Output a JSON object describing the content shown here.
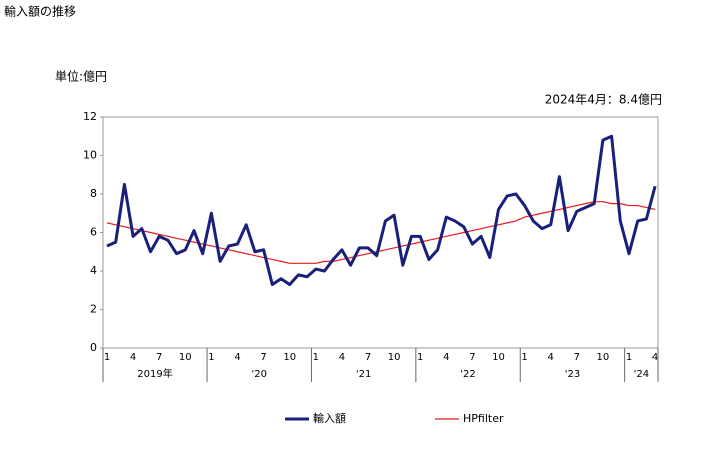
{
  "chart_data": {
    "type": "line",
    "title": "輸入額の推移",
    "unit_label": "単位:億円",
    "annotation": "2024年4月：8.4億円",
    "categories": [
      "1",
      null,
      null,
      "4",
      null,
      null,
      "7",
      null,
      null,
      "10",
      null,
      null,
      "1",
      null,
      null,
      "4",
      null,
      null,
      "7",
      null,
      null,
      "10",
      null,
      null,
      "1",
      null,
      null,
      "4",
      null,
      null,
      "7",
      null,
      null,
      "10",
      null,
      null,
      "1",
      null,
      null,
      "4",
      null,
      null,
      "7",
      null,
      null,
      "10",
      null,
      null,
      "1",
      null,
      null,
      "4",
      null,
      null,
      "7",
      null,
      null,
      "10",
      null,
      null,
      "1",
      null,
      null,
      "4"
    ],
    "year_labels": [
      "2019年",
      "'20",
      "'21",
      "'22",
      "'23",
      "'24"
    ],
    "series": [
      {
        "name": "輸入額",
        "color": "#1a1f7a",
        "values": [
          5.3,
          5.5,
          8.5,
          5.8,
          6.2,
          5.0,
          5.8,
          5.6,
          4.9,
          5.1,
          6.1,
          4.9,
          7.0,
          4.5,
          5.3,
          5.4,
          6.4,
          5.0,
          5.1,
          3.3,
          3.6,
          3.3,
          3.8,
          3.7,
          4.1,
          4.0,
          4.6,
          5.1,
          4.3,
          5.2,
          5.2,
          4.8,
          6.6,
          6.9,
          4.3,
          5.8,
          5.8,
          4.6,
          5.1,
          6.8,
          6.6,
          6.3,
          5.4,
          5.8,
          4.7,
          7.2,
          7.9,
          8.0,
          7.4,
          6.6,
          6.2,
          6.4,
          8.9,
          6.1,
          7.1,
          7.3,
          7.5,
          10.8,
          11.0,
          6.6,
          4.9,
          6.6,
          6.7,
          8.4
        ]
      },
      {
        "name": "HPfilter",
        "color": "#e8191e",
        "values": [
          6.5,
          6.4,
          6.3,
          6.2,
          6.1,
          6.0,
          5.9,
          5.8,
          5.7,
          5.6,
          5.5,
          5.4,
          5.3,
          5.2,
          5.1,
          5.0,
          4.9,
          4.8,
          4.7,
          4.6,
          4.5,
          4.4,
          4.4,
          4.4,
          4.4,
          4.5,
          4.5,
          4.6,
          4.7,
          4.8,
          4.9,
          5.0,
          5.1,
          5.2,
          5.3,
          5.4,
          5.5,
          5.6,
          5.7,
          5.8,
          5.9,
          6.0,
          6.1,
          6.2,
          6.3,
          6.4,
          6.5,
          6.6,
          6.8,
          6.9,
          7.0,
          7.1,
          7.2,
          7.3,
          7.4,
          7.5,
          7.6,
          7.6,
          7.5,
          7.5,
          7.4,
          7.4,
          7.3,
          7.2
        ]
      }
    ],
    "ylim": [
      0,
      12
    ],
    "yticks": [
      0,
      2,
      4,
      6,
      8,
      10,
      12
    ]
  }
}
